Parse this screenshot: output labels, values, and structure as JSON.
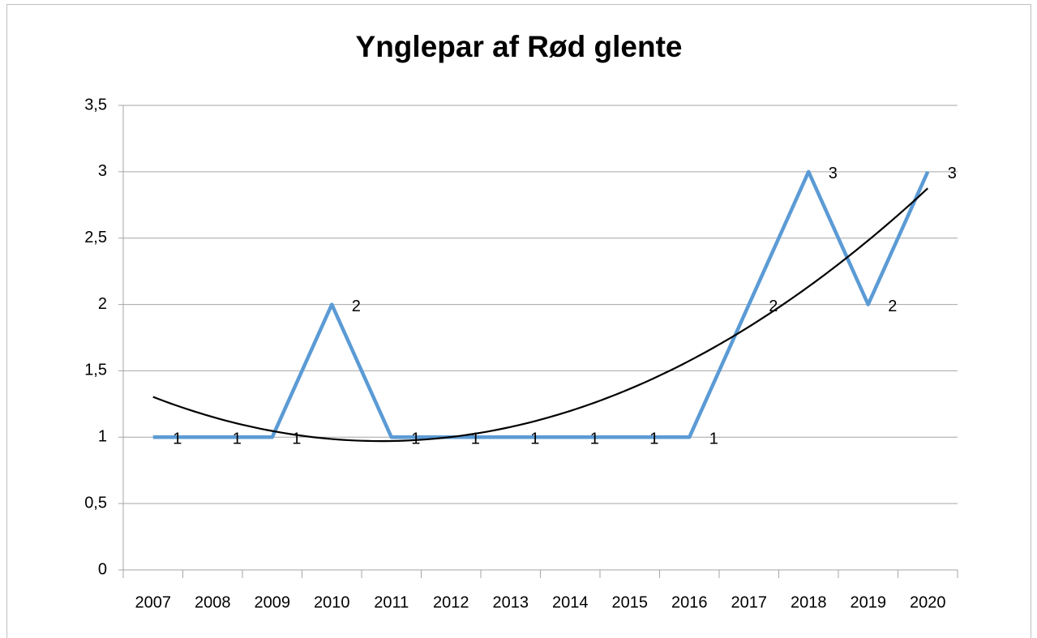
{
  "chart_data": {
    "type": "line",
    "title": "Ynglepar af Rød glente",
    "categories": [
      "2007",
      "2008",
      "2009",
      "2010",
      "2011",
      "2012",
      "2013",
      "2014",
      "2015",
      "2016",
      "2017",
      "2018",
      "2019",
      "2020"
    ],
    "series": [
      {
        "name": "Ynglepar",
        "color": "#5b9bd5",
        "values": [
          1,
          1,
          1,
          2,
          1,
          1,
          1,
          1,
          1,
          1,
          2,
          3,
          2,
          3
        ]
      }
    ],
    "ylim": [
      0,
      3.5
    ],
    "yticks": [
      0,
      {
        "value": 0.5,
        "label": "0,5"
      },
      1,
      {
        "value": 1.5,
        "label": "1,5"
      },
      2,
      {
        "value": 2.5,
        "label": "2,5"
      },
      3,
      {
        "value": 3.5,
        "label": "3,5"
      }
    ],
    "grid": true,
    "data_labels": true,
    "trendline": {
      "type": "polynomial",
      "order": 2,
      "color": "#000000"
    }
  }
}
